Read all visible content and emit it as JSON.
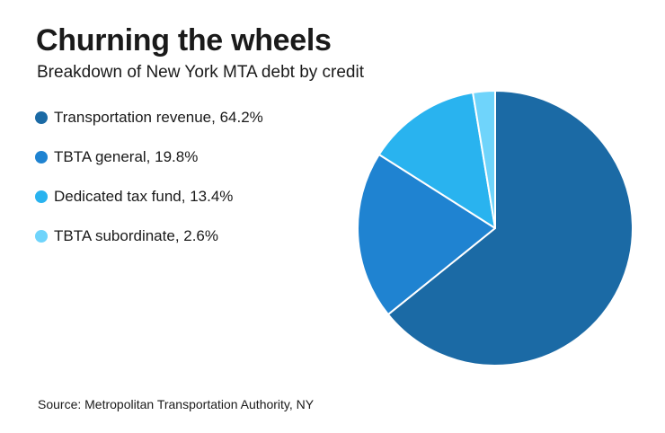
{
  "header": {
    "title": "Churning the wheels",
    "subtitle": "Breakdown of New York MTA debt by credit"
  },
  "legend": {
    "items": [
      {
        "label": "Transportation revenue, 64.2%",
        "color": "#1b6aa5"
      },
      {
        "label": "TBTA general, 19.8%",
        "color": "#1f83d1"
      },
      {
        "label": "Dedicated tax fund, 13.4%",
        "color": "#29b3ef"
      },
      {
        "label": "TBTA subordinate, 2.6%",
        "color": "#6fd4fb"
      }
    ]
  },
  "chart_data": {
    "type": "pie",
    "title": "Churning the wheels",
    "subtitle": "Breakdown of New York MTA debt by credit",
    "categories": [
      "Transportation revenue",
      "TBTA general",
      "Dedicated tax fund",
      "TBTA subordinate"
    ],
    "values": [
      64.2,
      19.8,
      13.4,
      2.6
    ],
    "colors": [
      "#1b6aa5",
      "#1f83d1",
      "#29b3ef",
      "#6fd4fb"
    ],
    "legend": "left"
  },
  "footer": {
    "source": "Source: Metropolitan Transportation Authority, NY"
  }
}
